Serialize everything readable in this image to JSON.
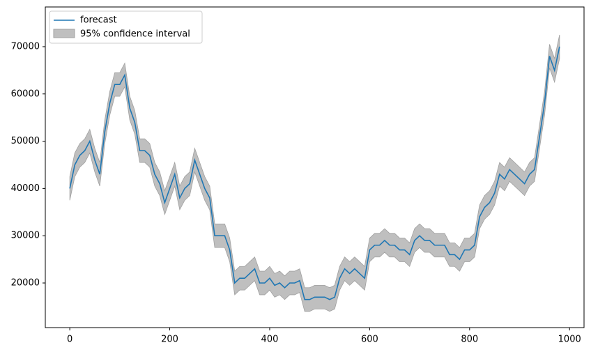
{
  "chart_data": {
    "type": "line",
    "x": [
      0,
      10,
      20,
      30,
      40,
      50,
      60,
      70,
      80,
      90,
      100,
      110,
      120,
      130,
      140,
      150,
      160,
      170,
      180,
      190,
      200,
      210,
      220,
      230,
      240,
      250,
      260,
      270,
      280,
      290,
      300,
      310,
      320,
      330,
      340,
      350,
      360,
      370,
      380,
      390,
      400,
      410,
      420,
      430,
      440,
      450,
      460,
      470,
      480,
      490,
      500,
      510,
      520,
      530,
      540,
      550,
      560,
      570,
      580,
      590,
      600,
      610,
      620,
      630,
      640,
      650,
      660,
      670,
      680,
      690,
      700,
      710,
      720,
      730,
      740,
      750,
      760,
      770,
      780,
      790,
      800,
      810,
      820,
      830,
      840,
      850,
      860,
      870,
      880,
      890,
      900,
      910,
      920,
      930,
      940,
      950,
      960,
      970,
      980
    ],
    "series": [
      {
        "name": "forecast",
        "color": "#1f77b4",
        "values": [
          40000,
          45000,
          47000,
          48000,
          50000,
          46000,
          43000,
          52000,
          58000,
          62000,
          62000,
          64000,
          57000,
          54000,
          48000,
          48000,
          47000,
          43000,
          41000,
          37000,
          40000,
          43000,
          38000,
          40000,
          41000,
          46000,
          43000,
          40000,
          38000,
          30000,
          30000,
          30000,
          27000,
          20000,
          21000,
          21000,
          22000,
          23000,
          20000,
          20000,
          21000,
          19500,
          20000,
          19000,
          20000,
          20000,
          20500,
          16500,
          16500,
          17000,
          17000,
          17000,
          16500,
          17000,
          21000,
          23000,
          22000,
          23000,
          22000,
          21000,
          27000,
          28000,
          28000,
          29000,
          28000,
          28000,
          27000,
          27000,
          26000,
          29000,
          30000,
          29000,
          29000,
          28000,
          28000,
          28000,
          26000,
          26000,
          25000,
          27000,
          27000,
          28000,
          34000,
          36000,
          37000,
          39000,
          43000,
          42000,
          44000,
          43000,
          42000,
          41000,
          43000,
          44000,
          51000,
          58000,
          68000,
          65000,
          70000
        ]
      }
    ],
    "band": {
      "name": "95% confidence interval",
      "color": "#bfbfbf",
      "upper": [
        42500,
        47500,
        49500,
        50500,
        52500,
        48500,
        45500,
        54500,
        60500,
        64500,
        64500,
        66500,
        59500,
        56500,
        50500,
        50500,
        49500,
        45500,
        43500,
        39500,
        42500,
        45500,
        40500,
        42500,
        43500,
        48500,
        45500,
        42500,
        40500,
        32500,
        32500,
        32500,
        29500,
        22500,
        23500,
        23500,
        24500,
        25500,
        22500,
        22500,
        23500,
        22000,
        22500,
        21500,
        22500,
        22500,
        23000,
        19000,
        19000,
        19500,
        19500,
        19500,
        19000,
        19500,
        23500,
        25500,
        24500,
        25500,
        24500,
        23500,
        29500,
        30500,
        30500,
        31500,
        30500,
        30500,
        29500,
        29500,
        28500,
        31500,
        32500,
        31500,
        31500,
        30500,
        30500,
        30500,
        28500,
        28500,
        27500,
        29500,
        29500,
        30500,
        36500,
        38500,
        39500,
        41500,
        45500,
        44500,
        46500,
        45500,
        44500,
        43500,
        45500,
        46500,
        53500,
        60500,
        70500,
        67500,
        72500
      ],
      "lower": [
        37500,
        42500,
        44500,
        45500,
        47500,
        43500,
        40500,
        49500,
        55500,
        59500,
        59500,
        61500,
        54500,
        51500,
        45500,
        45500,
        44500,
        40500,
        38500,
        34500,
        37500,
        40500,
        35500,
        37500,
        38500,
        43500,
        40500,
        37500,
        35500,
        27500,
        27500,
        27500,
        24500,
        17500,
        18500,
        18500,
        19500,
        20500,
        17500,
        17500,
        18500,
        17000,
        17500,
        16500,
        17500,
        17500,
        18000,
        14000,
        14000,
        14500,
        14500,
        14500,
        14000,
        14500,
        18500,
        20500,
        19500,
        20500,
        19500,
        18500,
        24500,
        25500,
        25500,
        26500,
        25500,
        25500,
        24500,
        24500,
        23500,
        26500,
        27500,
        26500,
        26500,
        25500,
        25500,
        25500,
        23500,
        23500,
        22500,
        24500,
        24500,
        25500,
        31500,
        33500,
        34500,
        36500,
        40500,
        39500,
        41500,
        40500,
        39500,
        38500,
        40500,
        41500,
        48500,
        55500,
        65500,
        62500,
        67500
      ]
    },
    "xlim": [
      -49,
      1029
    ],
    "ylim": [
      10560,
      78400
    ],
    "xticks": [
      0,
      200,
      400,
      600,
      800,
      1000
    ],
    "yticks": [
      20000,
      30000,
      40000,
      50000,
      60000,
      70000
    ],
    "legend": "upper left"
  }
}
